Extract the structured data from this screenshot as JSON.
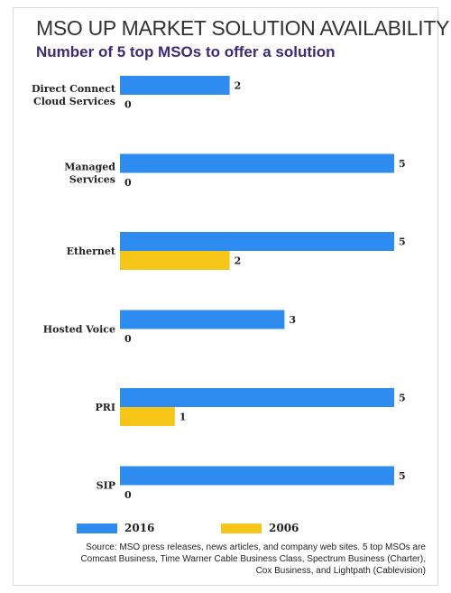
{
  "title": "MSO UP MARKET SOLUTION AVAILABILITY",
  "subtitle": "Number of 5 top MSOs to offer a solution",
  "colors": {
    "s2016": "#2e8cf0",
    "s2006": "#f5c518"
  },
  "chart_data": {
    "type": "bar",
    "orientation": "horizontal",
    "categories": [
      [
        "Direct Connect",
        "Cloud Services"
      ],
      [
        "Managed",
        "Services"
      ],
      [
        "Ethernet"
      ],
      [
        "Hosted Voice"
      ],
      [
        "PRI"
      ],
      [
        "SIP"
      ]
    ],
    "series": [
      {
        "name": "2016",
        "values": [
          2,
          5,
          5,
          3,
          5,
          5
        ]
      },
      {
        "name": "2006",
        "values": [
          0,
          0,
          2,
          0,
          1,
          0
        ]
      }
    ],
    "xlim": [
      0,
      5
    ],
    "grid": false,
    "legend": "bottom"
  },
  "legend": {
    "items": [
      "2016",
      "2006"
    ]
  },
  "source": [
    "Source:  MSO press releases, news articles, and company web sites.  5 top MSOs are",
    "Comcast Business, Time Warner Cable Business Class, Spectrum Business (Charter),",
    "Cox Business, and Lightpath (Cablevision)"
  ]
}
